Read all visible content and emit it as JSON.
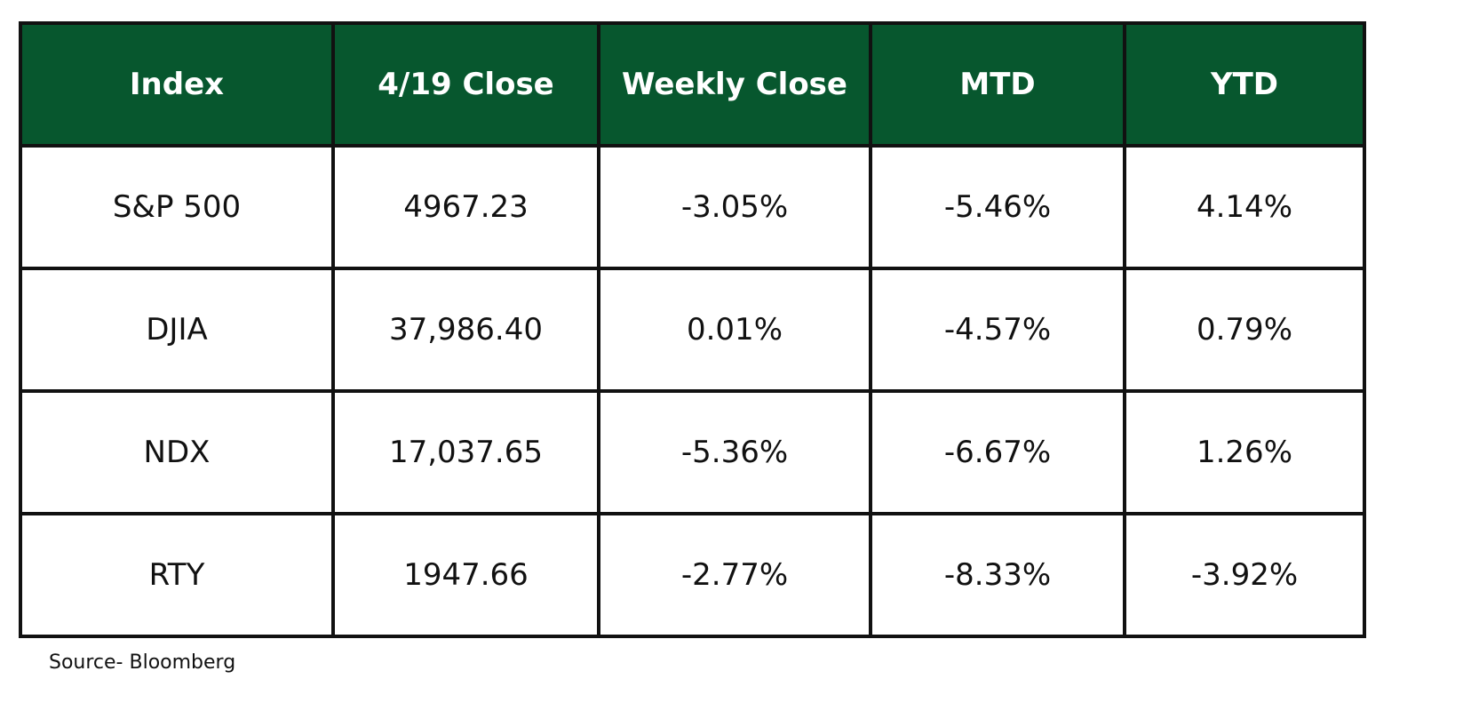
{
  "colors": {
    "header_background": "#07572e",
    "header_text": "#ffffff",
    "border": "#111111",
    "cell_background": "#ffffff"
  },
  "chart_data": {
    "type": "table",
    "columns": [
      "Index",
      "4/19 Close",
      "Weekly Close",
      "MTD",
      "YTD"
    ],
    "rows": [
      [
        "S&P 500",
        "4967.23",
        "-3.05%",
        "-5.46%",
        "4.14%"
      ],
      [
        "DJIA",
        "37,986.40",
        "0.01%",
        "-4.57%",
        "0.79%"
      ],
      [
        "NDX",
        "17,037.65",
        "-5.36%",
        "-6.67%",
        "1.26%"
      ],
      [
        "RTY",
        "1947.66",
        "-2.77%",
        "-8.33%",
        "-3.92%"
      ]
    ]
  },
  "source": "Source- Bloomberg"
}
